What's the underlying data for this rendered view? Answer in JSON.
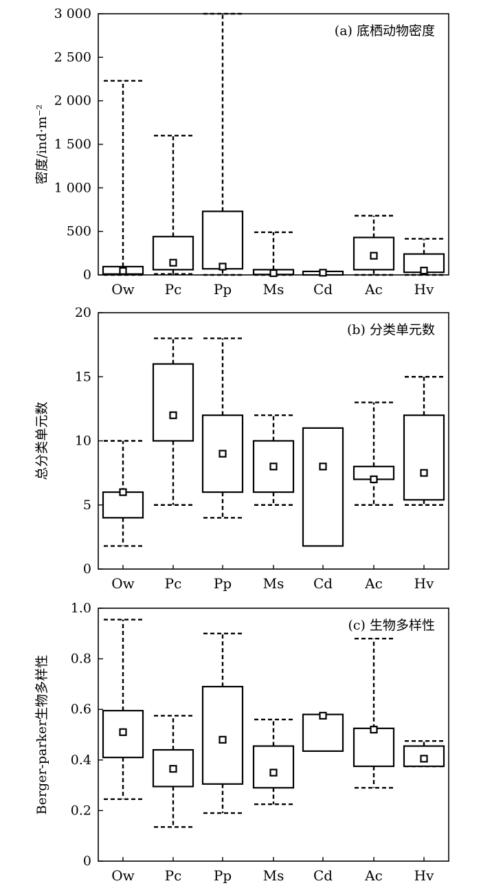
{
  "chart_data": [
    {
      "type": "box",
      "title": "(a) 底栖动物密度",
      "ylabel": "密度/ind·m⁻²",
      "xlabel": "",
      "ylim": [
        0,
        3000
      ],
      "yticks": [
        0,
        500,
        1000,
        1500,
        2000,
        2500,
        3000
      ],
      "ytick_labels": [
        "0",
        "500",
        "1 000",
        "1 500",
        "2 000",
        "2 500",
        "3 000"
      ],
      "categories": [
        "Ow",
        "Pc",
        "Pp",
        "Ms",
        "Cd",
        "Ac",
        "Hv"
      ],
      "boxes": [
        {
          "whisker_low": 0,
          "q1": 10,
          "q3": 95,
          "whisker_high": 2230,
          "mean": 45
        },
        {
          "whisker_low": 10,
          "q1": 60,
          "q3": 440,
          "whisker_high": 1600,
          "mean": 140
        },
        {
          "whisker_low": 0,
          "q1": 70,
          "q3": 730,
          "whisker_high": 3000,
          "mean": 95
        },
        {
          "whisker_low": 0,
          "q1": 5,
          "q3": 60,
          "whisker_high": 490,
          "mean": 20
        },
        {
          "whisker_low": null,
          "q1": 0,
          "q3": 40,
          "whisker_high": null,
          "mean": 25
        },
        {
          "whisker_low": 0,
          "q1": 60,
          "q3": 430,
          "whisker_high": 680,
          "mean": 220
        },
        {
          "whisker_low": 0,
          "q1": 30,
          "q3": 240,
          "whisker_high": 415,
          "mean": 50
        }
      ]
    },
    {
      "type": "box",
      "title": "(b) 分类单元数",
      "ylabel": "总分类单元数",
      "xlabel": "",
      "ylim": [
        0,
        20
      ],
      "yticks": [
        0,
        5,
        10,
        15,
        20
      ],
      "ytick_labels": [
        "0",
        "5",
        "10",
        "15",
        "20"
      ],
      "categories": [
        "Ow",
        "Pc",
        "Pp",
        "Ms",
        "Cd",
        "Ac",
        "Hv"
      ],
      "boxes": [
        {
          "whisker_low": 1.8,
          "q1": 4,
          "q3": 6,
          "whisker_high": 10,
          "mean": 6
        },
        {
          "whisker_low": 5,
          "q1": 10,
          "q3": 16,
          "whisker_high": 18,
          "mean": 12
        },
        {
          "whisker_low": 4,
          "q1": 6,
          "q3": 12,
          "whisker_high": 18,
          "mean": 9
        },
        {
          "whisker_low": 5,
          "q1": 6,
          "q3": 10,
          "whisker_high": 12,
          "mean": 8
        },
        {
          "whisker_low": null,
          "q1": 1.8,
          "q3": 11,
          "whisker_high": null,
          "mean": 8
        },
        {
          "whisker_low": 5,
          "q1": 7,
          "q3": 8,
          "whisker_high": 13,
          "mean": 7
        },
        {
          "whisker_low": 5,
          "q1": 5.4,
          "q3": 12,
          "whisker_high": 15,
          "mean": 7.5
        }
      ]
    },
    {
      "type": "box",
      "title": "(c) 生物多样性",
      "ylabel": "Berger-parker生物多样性",
      "xlabel": "",
      "ylim": [
        0,
        1.0
      ],
      "yticks": [
        0,
        0.2,
        0.4,
        0.6,
        0.8,
        1.0
      ],
      "ytick_labels": [
        "0",
        "0.2",
        "0.4",
        "0.6",
        "0.8",
        "1.0"
      ],
      "categories": [
        "Ow",
        "Pc",
        "Pp",
        "Ms",
        "Cd",
        "Ac",
        "Hv"
      ],
      "boxes": [
        {
          "whisker_low": 0.245,
          "q1": 0.41,
          "q3": 0.595,
          "whisker_high": 0.955,
          "mean": 0.51
        },
        {
          "whisker_low": 0.135,
          "q1": 0.295,
          "q3": 0.44,
          "whisker_high": 0.575,
          "mean": 0.365
        },
        {
          "whisker_low": 0.19,
          "q1": 0.305,
          "q3": 0.69,
          "whisker_high": 0.9,
          "mean": 0.48
        },
        {
          "whisker_low": 0.225,
          "q1": 0.29,
          "q3": 0.455,
          "whisker_high": 0.56,
          "mean": 0.35
        },
        {
          "whisker_low": null,
          "q1": 0.435,
          "q3": 0.58,
          "whisker_high": null,
          "mean": 0.575
        },
        {
          "whisker_low": 0.29,
          "q1": 0.375,
          "q3": 0.525,
          "whisker_high": 0.88,
          "mean": 0.52
        },
        {
          "whisker_low": 0.375,
          "q1": 0.375,
          "q3": 0.455,
          "whisker_high": 0.475,
          "mean": 0.405
        }
      ]
    }
  ]
}
